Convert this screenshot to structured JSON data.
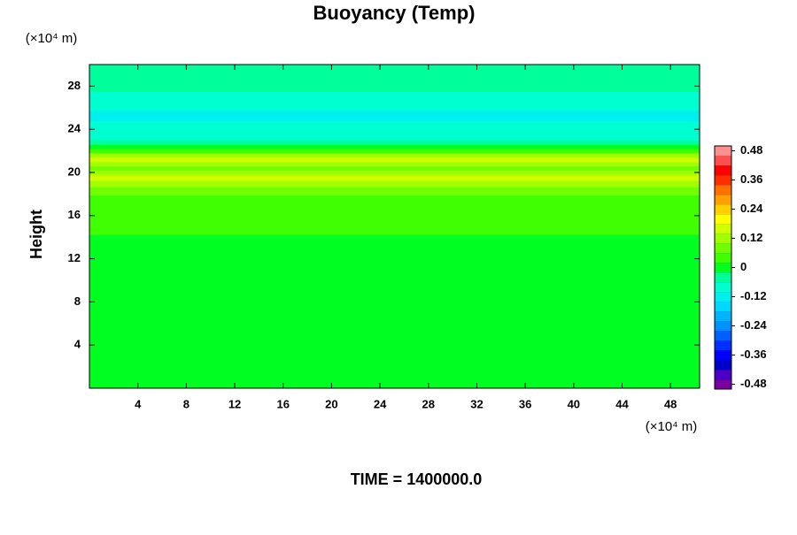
{
  "chart_data": {
    "type": "contour",
    "title": "Buoyancy (Temp)",
    "y_label": "Height",
    "x_unit": "(×10⁴ m)",
    "y_unit": "(×10⁴ m)",
    "annotation": "TIME = 1400000.0",
    "xlim": [
      0,
      50.4
    ],
    "ylim": [
      0,
      30
    ],
    "xticks": [
      4,
      8,
      12,
      16,
      20,
      24,
      28,
      32,
      36,
      40,
      44,
      48
    ],
    "yticks": [
      4,
      8,
      12,
      16,
      20,
      24,
      28
    ],
    "y": [
      0,
      2,
      4,
      6,
      8,
      10,
      11.5,
      12.5,
      13.5,
      15,
      16.5,
      17.5,
      18.3,
      19,
      19.5,
      20,
      20.4,
      20.8,
      21.2,
      21.6,
      22,
      22.4,
      22.8,
      23.2,
      23.6,
      24,
      24.5,
      25,
      25.5,
      26,
      26.5,
      27,
      28,
      29,
      30
    ],
    "values": [
      0.01,
      0.01,
      0.01,
      0.01,
      0.01,
      0.01,
      0.0,
      -0.01,
      0.0,
      0.02,
      0.03,
      0.05,
      0.07,
      0.1,
      0.14,
      0.12,
      0.08,
      0.12,
      0.17,
      0.1,
      0.04,
      -0.02,
      -0.05,
      -0.07,
      -0.08,
      -0.09,
      -0.1,
      -0.11,
      -0.11,
      -0.1,
      -0.09,
      -0.08,
      -0.06,
      -0.05,
      -0.04
    ],
    "colorbar": {
      "lim": [
        -0.5,
        0.5
      ],
      "ticks": [
        -0.48,
        -0.36,
        -0.24,
        -0.12,
        0,
        0.12,
        0.24,
        0.36,
        0.48
      ],
      "colors": [
        "#7a00a0",
        "#4b00c8",
        "#0000c8",
        "#0000ff",
        "#0030ff",
        "#0060ff",
        "#0090ff",
        "#00b4ff",
        "#00d8ff",
        "#00f0f0",
        "#00ffd0",
        "#00ff9a",
        "#00ff20",
        "#40ff00",
        "#70ff00",
        "#a0ff00",
        "#d0ff00",
        "#ffff00",
        "#ffd000",
        "#ffa000",
        "#ff7000",
        "#ff3000",
        "#ff0000",
        "#ff5050",
        "#ff9090"
      ]
    }
  }
}
